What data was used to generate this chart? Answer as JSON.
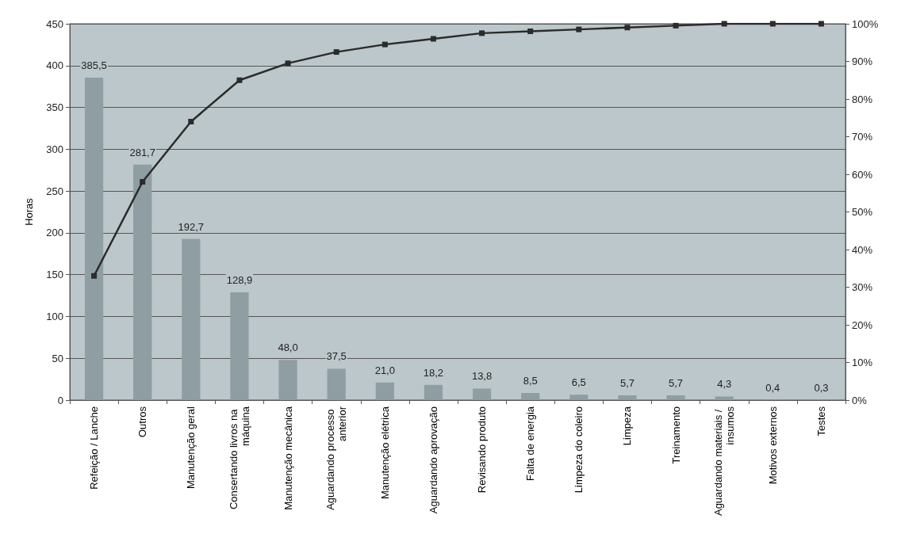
{
  "chart_data": {
    "type": "bar",
    "ylabel": "Horas",
    "categories": [
      "Refeição / Lanche",
      "Outros",
      "Manutenção geral",
      "Consertando livros na máquina",
      "Manutenção mecânica",
      "Aguardando processo anterior",
      "Manutenção elétrica",
      "Aguardando aprovação",
      "Revisando produto",
      "Falta de energia",
      "Limpeza do coleiro",
      "Limpeza",
      "Treinamento",
      "Aguardando materiais / insumos",
      "Motivos externos",
      "Testes"
    ],
    "series": [
      {
        "color": "#8e9ea3",
        "values": [
          385.5,
          281.7,
          192.7,
          128.9,
          48.0,
          37.5,
          21.0,
          18.2,
          13.8,
          8.5,
          6.5,
          5.7,
          5.7,
          4.3,
          0.4,
          0.3
        ],
        "value_labels": [
          "385,5",
          "281,7",
          "192,7",
          "128,9",
          "48,0",
          "37,5",
          "21,0",
          "18,2",
          "13,8",
          "8,5",
          "6,5",
          "5,7",
          "5,7",
          "4,3",
          "0,4",
          "0,3"
        ]
      },
      {
        "type": "line",
        "axis": "y2",
        "color": "#2b2b2b",
        "marker": "square",
        "values": [
          33,
          58,
          74,
          85,
          89.5,
          92.5,
          94.5,
          96,
          97.5,
          98,
          98.5,
          99,
          99.5,
          100,
          100,
          100
        ]
      }
    ],
    "ylim": [
      0,
      450
    ],
    "yticks": [
      0,
      50,
      100,
      150,
      200,
      250,
      300,
      350,
      400,
      450
    ],
    "y2lim": [
      0,
      100
    ],
    "y2ticks": [
      {
        "value": 0,
        "label": "0%"
      },
      {
        "value": 10,
        "label": "10%"
      },
      {
        "value": 20,
        "label": "20%"
      },
      {
        "value": 30,
        "label": "30%"
      },
      {
        "value": 40,
        "label": "40%"
      },
      {
        "value": 50,
        "label": "50%"
      },
      {
        "value": 60,
        "label": "60%"
      },
      {
        "value": 70,
        "label": "70%"
      },
      {
        "value": 80,
        "label": "80%"
      },
      {
        "value": 90,
        "label": "90%"
      },
      {
        "value": 100,
        "label": "100%"
      }
    ],
    "grid": "y"
  }
}
